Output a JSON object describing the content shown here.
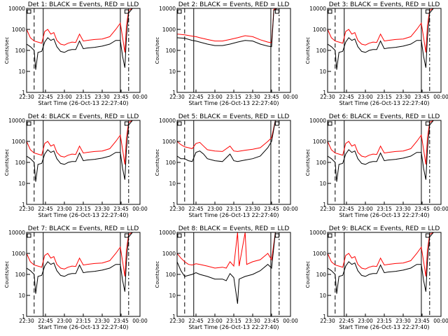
{
  "chart_data": {
    "type": "line",
    "scale_y": "log",
    "ylim": [
      1,
      10000
    ],
    "xlim": [
      "22:30",
      "00:00"
    ],
    "ytick_labels": [
      "1",
      "10",
      "100",
      "1000",
      "10000"
    ],
    "xtick_labels": [
      "22:30",
      "22:45",
      "23:00",
      "23:15",
      "23:30",
      "23:45",
      "00:00"
    ],
    "xlabel": "Start Time (26-Oct-13 22:27:40)",
    "ylabel": "Counts/sec",
    "series_colors": {
      "events": "#000000",
      "lld": "#ff0000"
    },
    "grid": false,
    "panels": [
      {
        "title": "Det 1: BLACK = Events, RED = LLD",
        "shape": "a"
      },
      {
        "title": "Det 2: BLACK = Events, RED = LLD",
        "shape": "b"
      },
      {
        "title": "Det 3: BLACK = Events, RED = LLD",
        "shape": "a"
      },
      {
        "title": "Det 4: BLACK = Events, RED = LLD",
        "shape": "a"
      },
      {
        "title": "Det 5: BLACK = Events, RED = LLD",
        "shape": "c"
      },
      {
        "title": "Det 6: BLACK = Events, RED = LLD",
        "shape": "a"
      },
      {
        "title": "Det 7: BLACK = Events, RED = LLD",
        "shape": "a"
      },
      {
        "title": "Det 8: BLACK = Events, RED = LLD",
        "shape": "d"
      },
      {
        "title": "Det 9: BLACK = Events, RED = LLD",
        "shape": "a"
      }
    ],
    "shapes": {
      "a": {
        "events": [
          [
            22.5,
            200
          ],
          [
            22.55,
            150
          ],
          [
            22.6,
            100
          ],
          [
            22.62,
            12
          ],
          [
            22.65,
            80
          ],
          [
            22.7,
            90
          ],
          [
            22.74,
            250
          ],
          [
            22.78,
            400
          ],
          [
            22.82,
            300
          ],
          [
            22.86,
            350
          ],
          [
            22.9,
            150
          ],
          [
            22.95,
            90
          ],
          [
            23.0,
            80
          ],
          [
            23.05,
            100
          ],
          [
            23.1,
            110
          ],
          [
            23.15,
            110
          ],
          [
            23.2,
            280
          ],
          [
            23.25,
            120
          ],
          [
            23.3,
            130
          ],
          [
            23.4,
            140
          ],
          [
            23.5,
            160
          ],
          [
            23.6,
            200
          ],
          [
            23.68,
            300
          ],
          [
            23.74,
            300
          ],
          [
            23.77,
            50
          ],
          [
            23.8,
            15
          ],
          [
            23.82,
            400
          ],
          [
            23.85,
            6000
          ],
          [
            23.9,
            10000
          ],
          [
            24.0,
            10000
          ]
        ],
        "lld": [
          [
            22.5,
            1000
          ],
          [
            22.55,
            400
          ],
          [
            22.6,
            280
          ],
          [
            22.65,
            250
          ],
          [
            22.7,
            220
          ],
          [
            22.74,
            800
          ],
          [
            22.78,
            1000
          ],
          [
            22.82,
            600
          ],
          [
            22.86,
            700
          ],
          [
            22.9,
            300
          ],
          [
            22.95,
            200
          ],
          [
            23.0,
            180
          ],
          [
            23.05,
            220
          ],
          [
            23.1,
            250
          ],
          [
            23.15,
            240
          ],
          [
            23.2,
            600
          ],
          [
            23.25,
            280
          ],
          [
            23.3,
            300
          ],
          [
            23.4,
            330
          ],
          [
            23.5,
            350
          ],
          [
            23.6,
            450
          ],
          [
            23.68,
            1000
          ],
          [
            23.74,
            2000
          ],
          [
            23.77,
            400
          ],
          [
            23.8,
            80
          ],
          [
            23.82,
            1500
          ],
          [
            23.85,
            8000
          ],
          [
            23.9,
            10000
          ],
          [
            24.0,
            10000
          ]
        ]
      },
      "b": {
        "events": [
          [
            22.5,
            400
          ],
          [
            22.6,
            380
          ],
          [
            22.7,
            300
          ],
          [
            22.75,
            280
          ],
          [
            22.8,
            250
          ],
          [
            22.9,
            200
          ],
          [
            23.0,
            170
          ],
          [
            23.1,
            170
          ],
          [
            23.2,
            200
          ],
          [
            23.3,
            250
          ],
          [
            23.4,
            300
          ],
          [
            23.5,
            280
          ],
          [
            23.6,
            200
          ],
          [
            23.7,
            160
          ],
          [
            23.75,
            150
          ],
          [
            23.78,
            8000
          ],
          [
            23.82,
            10000
          ],
          [
            24.0,
            10000
          ]
        ],
        "lld": [
          [
            22.5,
            600
          ],
          [
            22.6,
            550
          ],
          [
            22.7,
            480
          ],
          [
            22.75,
            450
          ],
          [
            22.8,
            400
          ],
          [
            22.9,
            330
          ],
          [
            23.0,
            280
          ],
          [
            23.1,
            280
          ],
          [
            23.2,
            330
          ],
          [
            23.3,
            400
          ],
          [
            23.4,
            500
          ],
          [
            23.5,
            450
          ],
          [
            23.6,
            320
          ],
          [
            23.7,
            250
          ],
          [
            23.75,
            230
          ],
          [
            23.78,
            9000
          ],
          [
            23.82,
            10000
          ],
          [
            24.0,
            10000
          ]
        ]
      },
      "c": {
        "events": [
          [
            22.5,
            200
          ],
          [
            22.55,
            150
          ],
          [
            22.6,
            150
          ],
          [
            22.65,
            120
          ],
          [
            22.7,
            110
          ],
          [
            22.75,
            300
          ],
          [
            22.8,
            350
          ],
          [
            22.85,
            250
          ],
          [
            22.9,
            150
          ],
          [
            23.0,
            120
          ],
          [
            23.1,
            110
          ],
          [
            23.2,
            250
          ],
          [
            23.25,
            120
          ],
          [
            23.3,
            110
          ],
          [
            23.4,
            130
          ],
          [
            23.5,
            150
          ],
          [
            23.6,
            200
          ],
          [
            23.7,
            500
          ],
          [
            23.75,
            1000
          ],
          [
            23.8,
            10000
          ],
          [
            24.0,
            10000
          ]
        ],
        "lld": [
          [
            22.5,
            1000
          ],
          [
            22.55,
            700
          ],
          [
            22.6,
            550
          ],
          [
            22.65,
            500
          ],
          [
            22.7,
            450
          ],
          [
            22.75,
            800
          ],
          [
            22.8,
            900
          ],
          [
            22.85,
            600
          ],
          [
            22.9,
            400
          ],
          [
            23.0,
            350
          ],
          [
            23.1,
            330
          ],
          [
            23.2,
            600
          ],
          [
            23.25,
            350
          ],
          [
            23.3,
            330
          ],
          [
            23.4,
            380
          ],
          [
            23.5,
            420
          ],
          [
            23.6,
            500
          ],
          [
            23.7,
            1000
          ],
          [
            23.75,
            1500
          ],
          [
            23.8,
            10000
          ],
          [
            24.0,
            10000
          ]
        ]
      },
      "d": {
        "events": [
          [
            22.5,
            400
          ],
          [
            22.55,
            150
          ],
          [
            22.6,
            80
          ],
          [
            22.65,
            90
          ],
          [
            22.7,
            100
          ],
          [
            22.75,
            120
          ],
          [
            22.8,
            100
          ],
          [
            22.9,
            80
          ],
          [
            23.0,
            60
          ],
          [
            23.1,
            60
          ],
          [
            23.15,
            50
          ],
          [
            23.2,
            110
          ],
          [
            23.25,
            70
          ],
          [
            23.3,
            4
          ],
          [
            23.32,
            60
          ],
          [
            23.4,
            80
          ],
          [
            23.5,
            100
          ],
          [
            23.6,
            150
          ],
          [
            23.7,
            300
          ],
          [
            23.75,
            200
          ],
          [
            23.8,
            10000
          ],
          [
            24.0,
            10000
          ]
        ],
        "lld": [
          [
            22.5,
            1000
          ],
          [
            22.55,
            600
          ],
          [
            22.6,
            400
          ],
          [
            22.65,
            300
          ],
          [
            22.7,
            280
          ],
          [
            22.75,
            320
          ],
          [
            22.8,
            300
          ],
          [
            22.9,
            250
          ],
          [
            23.0,
            200
          ],
          [
            23.1,
            220
          ],
          [
            23.15,
            200
          ],
          [
            23.2,
            400
          ],
          [
            23.25,
            250
          ],
          [
            23.3,
            10000
          ],
          [
            23.32,
            250
          ],
          [
            23.4,
            10000
          ],
          [
            23.42,
            300
          ],
          [
            23.5,
            400
          ],
          [
            23.6,
            500
          ],
          [
            23.7,
            1000
          ],
          [
            23.75,
            500
          ],
          [
            23.8,
            10000
          ],
          [
            24.0,
            10000
          ]
        ]
      }
    }
  }
}
